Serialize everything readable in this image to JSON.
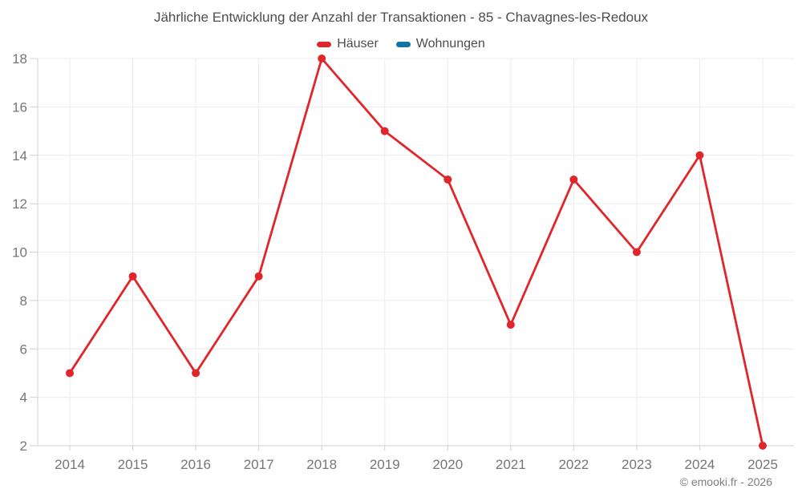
{
  "chart_data": {
    "type": "line",
    "title": "Jährliche Entwicklung der Anzahl der Transaktionen - 85 - Chavagnes-les-Redoux",
    "categories": [
      "2014",
      "2015",
      "2016",
      "2017",
      "2018",
      "2019",
      "2020",
      "2021",
      "2022",
      "2023",
      "2024",
      "2025"
    ],
    "series": [
      {
        "name": "Häuser",
        "color": "#e0262b",
        "values": [
          5,
          9,
          5,
          9,
          18,
          15,
          13,
          7,
          13,
          10,
          14,
          2
        ]
      },
      {
        "name": "Wohnungen",
        "color": "#1274a5",
        "values": []
      }
    ],
    "xlabel": "",
    "ylabel": "",
    "ylim": [
      2,
      18
    ],
    "yticks": [
      2,
      4,
      6,
      8,
      10,
      12,
      14,
      16,
      18
    ],
    "grid": true,
    "legend_position": "top",
    "marker": "circle"
  },
  "footer": {
    "copyright": "© emooki.fr - 2026"
  },
  "colors": {
    "background": "#ffffff",
    "grid": "#ececec",
    "axis": "#d0d0d0",
    "title_text": "#4d4d4d",
    "axis_text": "#767676",
    "copyright_text": "#7e7e7e"
  }
}
